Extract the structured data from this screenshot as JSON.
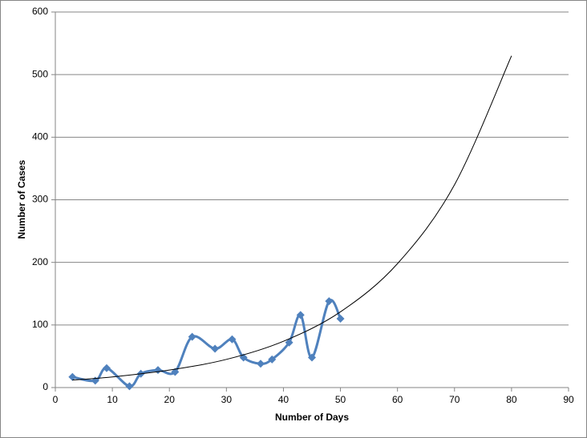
{
  "chart_data": {
    "type": "scatter",
    "xlabel": "Number of Days",
    "ylabel": "Number of Cases",
    "xlim": [
      0,
      90
    ],
    "xticks": [
      0,
      10,
      20,
      30,
      40,
      50,
      60,
      70,
      80,
      90
    ],
    "ylim": [
      0,
      600
    ],
    "yticks": [
      0,
      100,
      200,
      300,
      400,
      500,
      600
    ],
    "grid": true,
    "smooth": true,
    "series": [
      {
        "color": "#4f81bd",
        "marker": "diamond",
        "x": [
          3,
          7,
          9,
          13,
          15,
          18,
          21,
          24,
          28,
          31,
          33,
          36,
          38,
          41,
          43,
          45,
          48,
          50
        ],
        "values": [
          17,
          11,
          31,
          2,
          22,
          28,
          25,
          81,
          62,
          77,
          48,
          38,
          45,
          72,
          116,
          48,
          138,
          110
        ]
      },
      {
        "color": "#000000",
        "marker": "none",
        "trendline": "exponential",
        "x": [
          3,
          10,
          20,
          30,
          40,
          50,
          60,
          70,
          80
        ],
        "values": [
          12,
          17,
          28,
          45,
          74,
          121,
          198,
          324,
          530
        ]
      }
    ]
  }
}
